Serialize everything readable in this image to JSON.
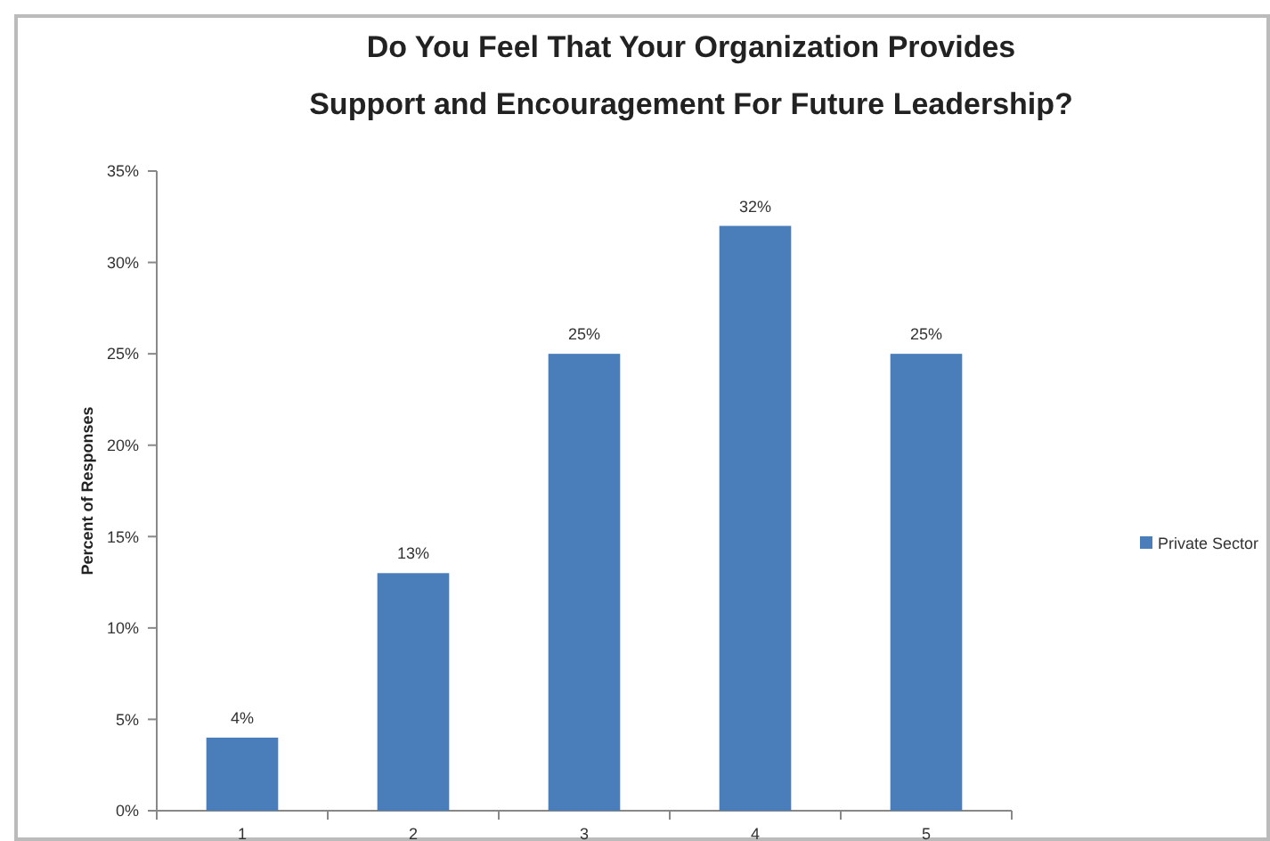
{
  "chart_data": {
    "type": "bar",
    "title": "Do You Feel That Your Organization Provides Support and Encouragement For Future Leadership?",
    "ylabel": "Percent of Responses",
    "categories": [
      "1",
      "2",
      "3",
      "4",
      "5"
    ],
    "series": [
      {
        "name": "Private Sector",
        "color": "#4a7ebb",
        "values": [
          4,
          13,
          25,
          32,
          25
        ],
        "value_labels": [
          "4%",
          "13%",
          "25%",
          "32%",
          "25%"
        ]
      }
    ],
    "ylim": [
      0,
      35
    ],
    "yticks": [
      {
        "value": 0,
        "label": "0%"
      },
      {
        "value": 5,
        "label": "5%"
      },
      {
        "value": 10,
        "label": "10%"
      },
      {
        "value": 15,
        "label": "15%"
      },
      {
        "value": 20,
        "label": "20%"
      },
      {
        "value": 25,
        "label": "25%"
      },
      {
        "value": 30,
        "label": "30%"
      },
      {
        "value": 35,
        "label": "35%"
      }
    ],
    "grid": false,
    "legend": "right"
  }
}
